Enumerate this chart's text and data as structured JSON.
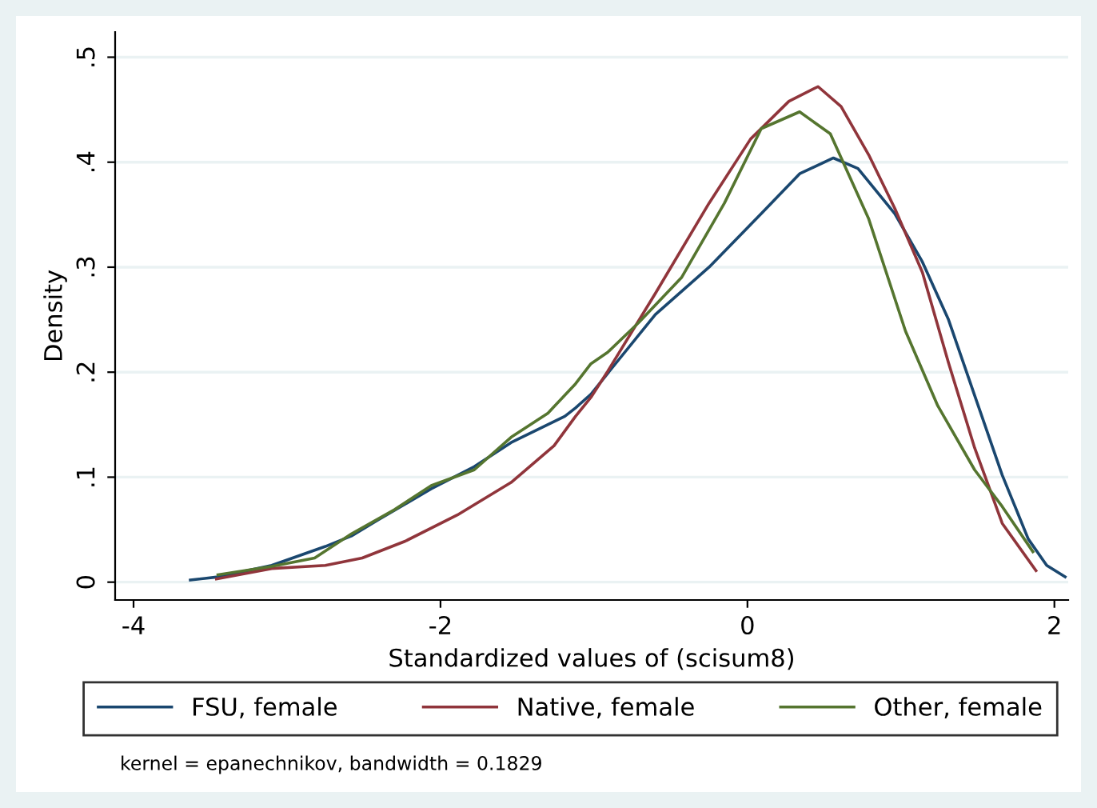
{
  "chart_data": {
    "type": "line",
    "xlabel": "Standardized values of (scisum8)",
    "ylabel": "Density",
    "xlim": [
      -4.12,
      2.09
    ],
    "ylim": [
      -0.017,
      0.524
    ],
    "xticks": [
      -4,
      -2,
      0,
      2
    ],
    "yticks": [
      {
        "value": 0,
        "label": "0"
      },
      {
        "value": 0.1,
        "label": ".1"
      },
      {
        "value": 0.2,
        "label": ".2"
      },
      {
        "value": 0.3,
        "label": ".3"
      },
      {
        "value": 0.4,
        "label": ".4"
      },
      {
        "value": 0.5,
        "label": ".5"
      }
    ],
    "grid": "y",
    "legend": "bottom",
    "marker": "none",
    "line_style": "solid",
    "annotations": [
      "kernel = epanechnikov, bandwidth = 0.1829"
    ],
    "series": [
      {
        "name": "FSU, female",
        "color": "#1a476f",
        "x": [
          -3.63,
          -3.45,
          -3.1,
          -2.75,
          -2.58,
          -2.41,
          -2.06,
          -1.78,
          -1.54,
          -1.19,
          -1.12,
          -1.02,
          -0.91,
          -0.6,
          -0.25,
          0.09,
          0.34,
          0.56,
          0.72,
          0.96,
          1.14,
          1.31,
          1.48,
          1.66,
          1.83,
          1.95,
          2.07
        ],
        "values": [
          0.002,
          0.005,
          0.016,
          0.034,
          0.044,
          0.059,
          0.089,
          0.11,
          0.133,
          0.158,
          0.166,
          0.179,
          0.199,
          0.255,
          0.3,
          0.351,
          0.389,
          0.404,
          0.394,
          0.351,
          0.305,
          0.25,
          0.178,
          0.102,
          0.041,
          0.016,
          0.005
        ]
      },
      {
        "name": "Native, female",
        "color": "#90353b",
        "x": [
          -3.46,
          -3.1,
          -2.75,
          -2.51,
          -2.23,
          -1.89,
          -1.54,
          -1.26,
          -1.12,
          -1.02,
          -0.91,
          -0.6,
          -0.25,
          0.02,
          0.27,
          0.46,
          0.61,
          0.79,
          0.96,
          1.14,
          1.31,
          1.48,
          1.66,
          1.88
        ],
        "values": [
          0.003,
          0.013,
          0.016,
          0.023,
          0.039,
          0.064,
          0.095,
          0.13,
          0.158,
          0.176,
          0.201,
          0.275,
          0.361,
          0.422,
          0.458,
          0.472,
          0.453,
          0.407,
          0.356,
          0.295,
          0.209,
          0.128,
          0.056,
          0.011
        ]
      },
      {
        "name": "Other, female",
        "color": "#55752f",
        "x": [
          -3.45,
          -3.1,
          -2.82,
          -2.58,
          -2.3,
          -2.06,
          -1.78,
          -1.54,
          -1.3,
          -1.12,
          -1.02,
          -0.91,
          -0.71,
          -0.43,
          -0.15,
          0.09,
          0.34,
          0.54,
          0.79,
          1.03,
          1.24,
          1.48,
          1.66,
          1.86
        ],
        "values": [
          0.007,
          0.015,
          0.023,
          0.046,
          0.069,
          0.092,
          0.107,
          0.138,
          0.161,
          0.189,
          0.208,
          0.219,
          0.247,
          0.29,
          0.361,
          0.432,
          0.448,
          0.427,
          0.346,
          0.239,
          0.168,
          0.107,
          0.072,
          0.029
        ]
      }
    ]
  }
}
